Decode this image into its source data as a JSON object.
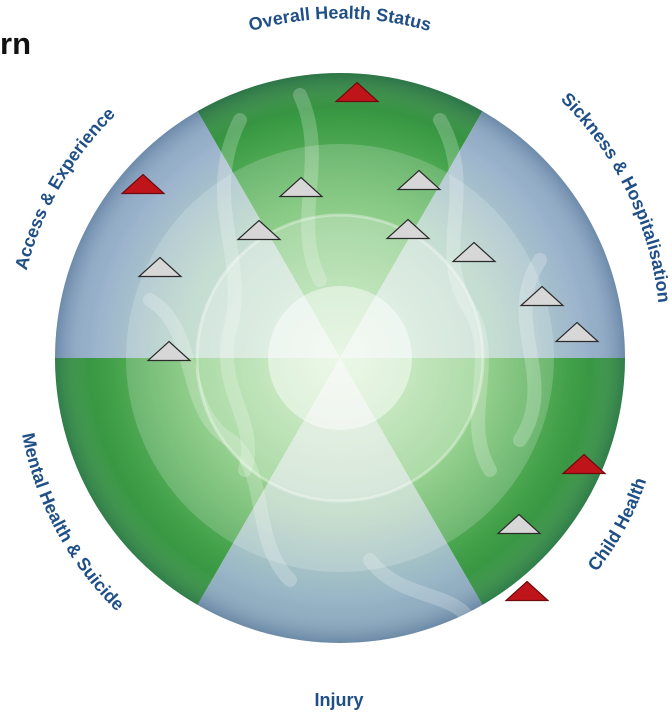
{
  "header": {
    "title_fragment": "rn"
  },
  "colors": {
    "label": "#1f4f86",
    "green_dark": "#2e8f3c",
    "blue_grey": "#9db5cd",
    "flag_red": "#c0141b",
    "flag_grey": "#d7d7d7"
  },
  "segments": [
    {
      "id": "overall-health-status",
      "label": "Overall Health Status"
    },
    {
      "id": "sickness-hospitalisation",
      "label": "Sickness & Hospitalisation"
    },
    {
      "id": "child-health",
      "label": "Child Health"
    },
    {
      "id": "injury",
      "label": "Injury"
    },
    {
      "id": "mental-health-suicide",
      "label": "Mental Health & Suicide"
    },
    {
      "id": "access-experience",
      "label": "Access & Experience"
    }
  ],
  "indicators": [
    {
      "segment": "overall-health-status",
      "status": "red"
    },
    {
      "segment": "overall-health-status",
      "status": "grey"
    },
    {
      "segment": "overall-health-status",
      "status": "grey"
    },
    {
      "segment": "overall-health-status",
      "status": "grey"
    },
    {
      "segment": "overall-health-status",
      "status": "grey"
    },
    {
      "segment": "sickness-hospitalisation",
      "status": "grey"
    },
    {
      "segment": "sickness-hospitalisation",
      "status": "grey"
    },
    {
      "segment": "sickness-hospitalisation",
      "status": "grey"
    },
    {
      "segment": "child-health",
      "status": "red"
    },
    {
      "segment": "child-health",
      "status": "grey"
    },
    {
      "segment": "child-health",
      "status": "red"
    },
    {
      "segment": "access-experience",
      "status": "red"
    },
    {
      "segment": "access-experience",
      "status": "grey"
    },
    {
      "segment": "access-experience",
      "status": "grey"
    }
  ]
}
